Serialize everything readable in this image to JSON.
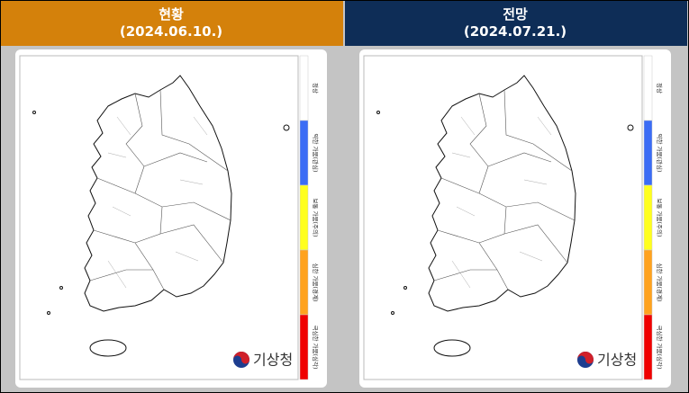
{
  "panels": [
    {
      "title": "현황",
      "date": "(2024.06.10.)",
      "header_color": "#d4810b"
    },
    {
      "title": "전망",
      "date": "(2024.07.21.)",
      "header_color": "#0e2d57"
    }
  ],
  "legend": [
    {
      "label": "정상",
      "color": "#ffffff"
    },
    {
      "label": "약한 가뭄(관심)",
      "color": "#3b6cf5"
    },
    {
      "label": "보통 가뭄(주의)",
      "color": "#ffff1e"
    },
    {
      "label": "심한 가뭄(경계)",
      "color": "#ffa21e"
    },
    {
      "label": "극심한 가뭄(심각)",
      "color": "#f00000"
    }
  ],
  "logo": "기상청"
}
